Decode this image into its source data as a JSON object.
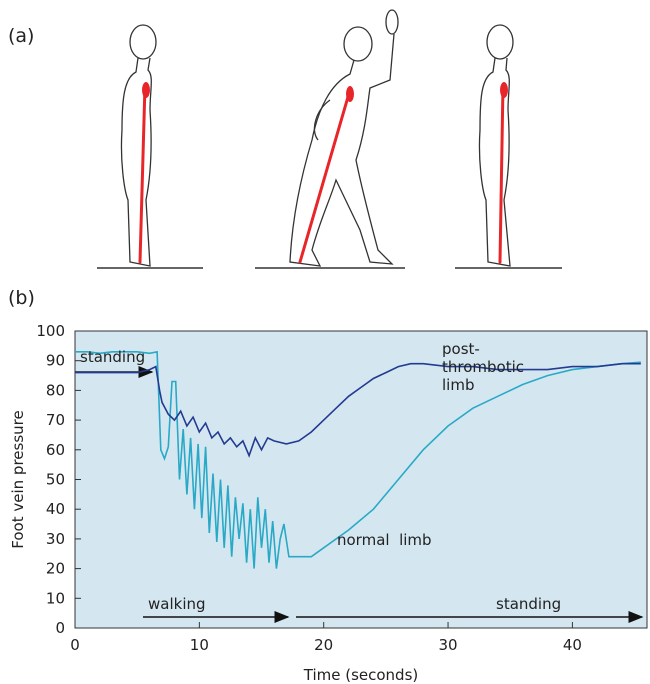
{
  "labels": {
    "a": "(a)",
    "b": "(b)"
  },
  "chart_data": {
    "type": "line",
    "xlabel": "Time (seconds)",
    "ylabel": "Foot vein pressure",
    "xlim": [
      0,
      46
    ],
    "ylim": [
      0,
      100
    ],
    "xticks": [
      0,
      10,
      20,
      30,
      40
    ],
    "yticks": [
      0,
      10,
      20,
      30,
      40,
      50,
      60,
      70,
      80,
      90,
      100
    ],
    "background": "#d4e7f1",
    "series": [
      {
        "name": "normal  limb",
        "color": "#2aa9c6",
        "x": [
          0,
          1,
          2,
          3,
          4,
          5,
          6,
          6.6,
          6.9,
          7.2,
          7.5,
          7.8,
          8.1,
          8.4,
          8.7,
          9.0,
          9.3,
          9.6,
          9.9,
          10.2,
          10.5,
          10.8,
          11.1,
          11.4,
          11.7,
          12.0,
          12.3,
          12.6,
          12.9,
          13.2,
          13.5,
          13.8,
          14.1,
          14.4,
          14.7,
          15.0,
          15.3,
          15.6,
          15.9,
          16.2,
          16.5,
          16.8,
          17.2,
          18,
          19,
          20,
          22,
          24,
          26,
          28,
          30,
          32,
          34,
          36,
          38,
          40,
          42,
          44,
          45.5
        ],
        "values": [
          93,
          93,
          92.5,
          93,
          93,
          93,
          92.5,
          93,
          60,
          57,
          61,
          83,
          83,
          50,
          67,
          45,
          64,
          40,
          62,
          37,
          61,
          32,
          52,
          29,
          50,
          27,
          48,
          24,
          44,
          30,
          42,
          22,
          40,
          20,
          44,
          27,
          40,
          22,
          36,
          20,
          30,
          35,
          24,
          24,
          24,
          27,
          33,
          40,
          50,
          60,
          68,
          74,
          78,
          82,
          85,
          87,
          88,
          89,
          89.5
        ]
      },
      {
        "name": "post-thrombotic limb",
        "color": "#233b91",
        "x": [
          0,
          2,
          4,
          5,
          6,
          6.5,
          6.8,
          7,
          7.5,
          8,
          8.5,
          9,
          9.5,
          10,
          10.5,
          11,
          11.5,
          12,
          12.5,
          13,
          13.5,
          14,
          14.5,
          15,
          15.5,
          16,
          17,
          18,
          19,
          20,
          21,
          22,
          23,
          24,
          25,
          26,
          27,
          28,
          30,
          32,
          34,
          36,
          38,
          40,
          42,
          44,
          45.5
        ],
        "values": [
          86,
          86,
          86,
          86,
          87,
          88,
          80,
          76,
          72,
          70,
          73,
          68,
          71,
          66,
          69,
          64,
          66,
          62,
          64,
          61,
          63,
          58,
          64,
          60,
          64,
          63,
          62,
          63,
          66,
          70,
          74,
          78,
          81,
          84,
          86,
          88,
          89,
          89,
          88,
          88,
          87,
          87,
          87,
          88,
          88,
          89,
          89
        ]
      }
    ],
    "annotations": [
      "standing",
      "walking",
      "standing"
    ]
  }
}
